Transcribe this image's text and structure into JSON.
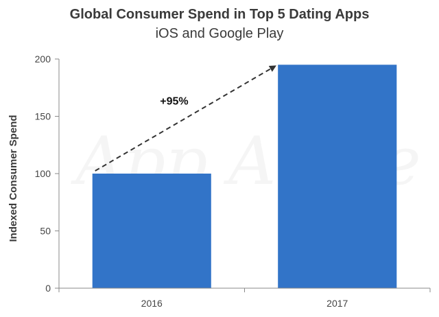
{
  "chart_data": {
    "type": "bar",
    "title": "Global Consumer Spend in Top 5 Dating Apps",
    "subtitle": "iOS and Google Play",
    "xlabel": "",
    "ylabel": "Indexed Consumer Spend",
    "categories": [
      "2016",
      "2017"
    ],
    "values": [
      100,
      195
    ],
    "ylim": [
      0,
      200
    ],
    "yticks": [
      0,
      50,
      100,
      150,
      200
    ],
    "grid": false,
    "bar_color": "#3274c8",
    "annotation": {
      "text": "+95%",
      "from_category": "2016",
      "to_category": "2017"
    },
    "watermark": "App Annie"
  }
}
